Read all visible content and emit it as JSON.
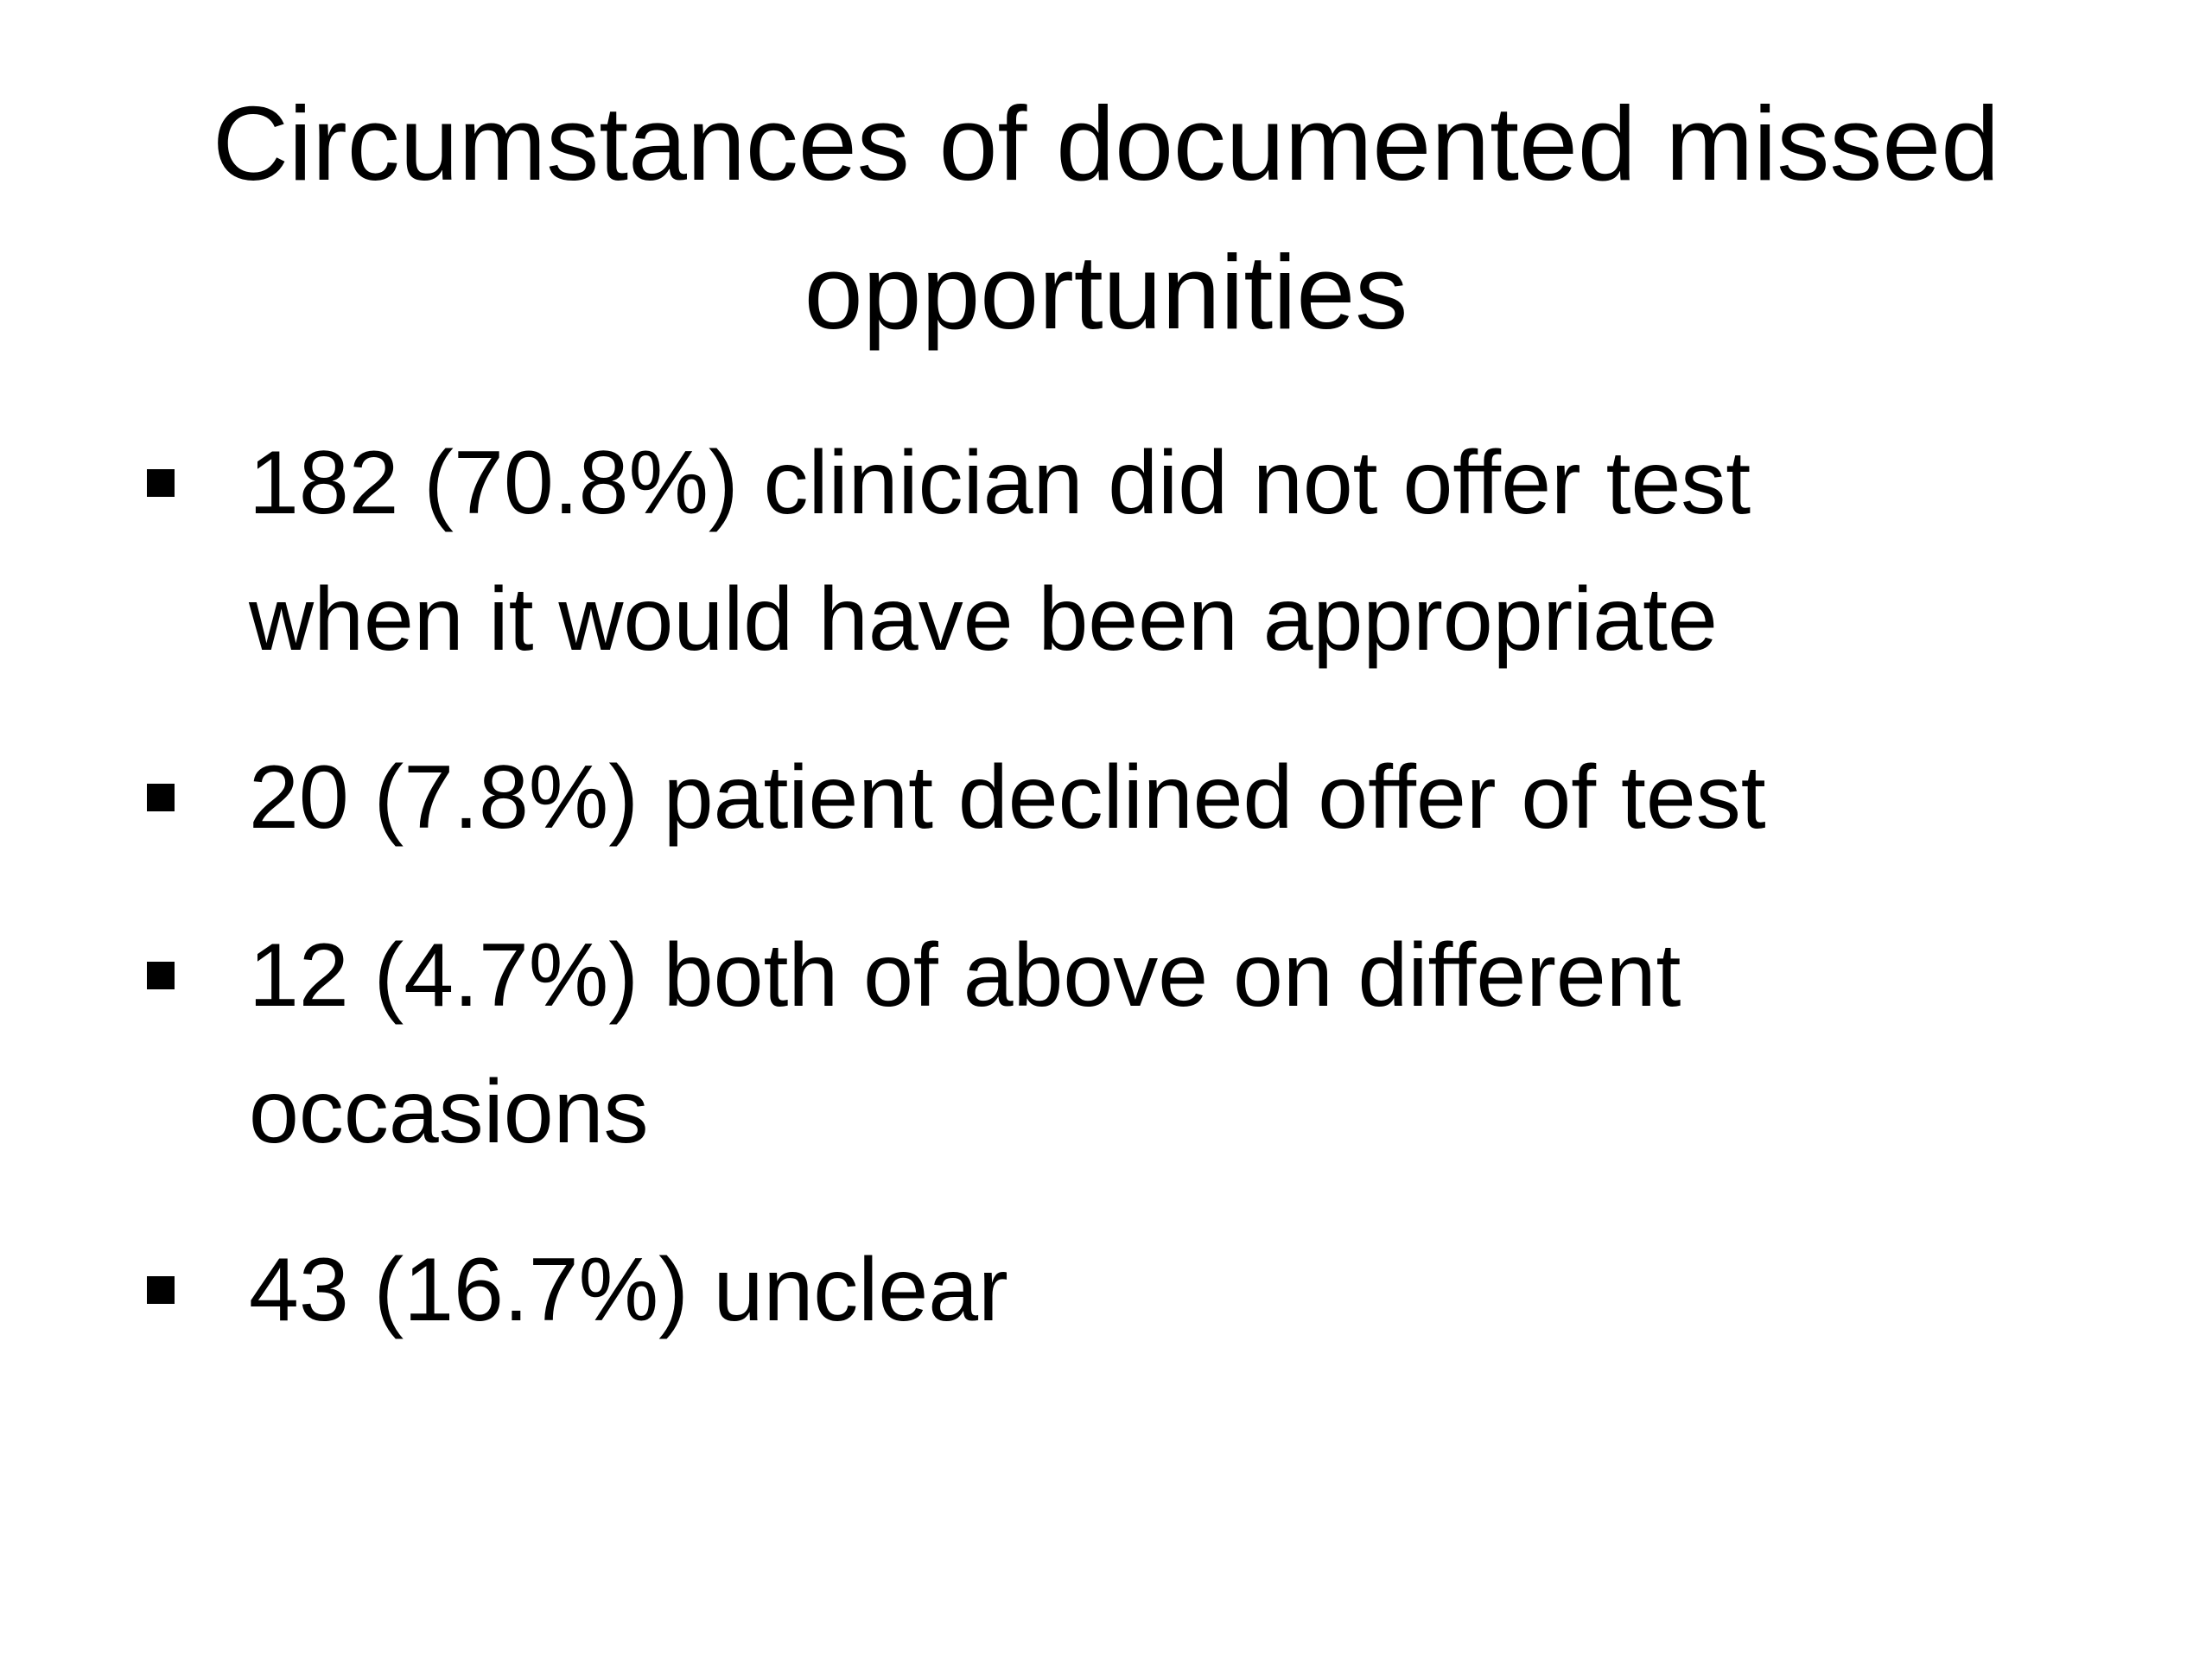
{
  "title": {
    "lines": [
      "Circumstances of documented missed",
      "opportunities"
    ]
  },
  "items": [
    {
      "lines": [
        "182 (70.8%) clinician did not offer test",
        "when it would have been appropriate"
      ]
    },
    {
      "lines": [
        "20 (7.8%) patient declined offer of test"
      ]
    },
    {
      "lines": [
        "12 (4.7%) both of above on different",
        "occasions"
      ]
    },
    {
      "lines": [
        "43 (16.7%) unclear"
      ]
    }
  ]
}
